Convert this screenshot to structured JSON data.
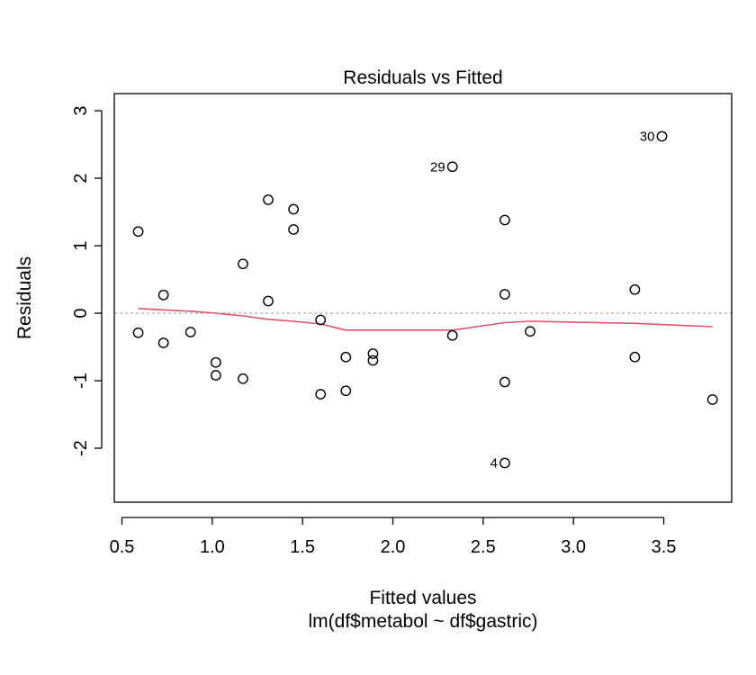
{
  "chart_data": {
    "type": "scatter",
    "title": "Residuals vs Fitted",
    "xlabel": "Fitted values",
    "sublabel": "lm(df$metabol ~ df$gastric)",
    "ylabel": "Residuals",
    "xlim": [
      0.5,
      3.85
    ],
    "ylim": [
      -2.8,
      3.2
    ],
    "xticks": [
      0.5,
      1.0,
      1.5,
      2.0,
      2.5,
      3.0,
      3.5
    ],
    "xtick_labels": [
      "0.5",
      "1.0",
      "1.5",
      "2.0",
      "2.5",
      "3.0",
      "3.5"
    ],
    "yticks": [
      -2,
      -1,
      0,
      1,
      2,
      3
    ],
    "ytick_labels": [
      "-2",
      "-1",
      "0",
      "1",
      "2",
      "3"
    ],
    "reference_line": 0,
    "points": [
      {
        "x": 0.59,
        "y": 1.21
      },
      {
        "x": 0.59,
        "y": -0.29
      },
      {
        "x": 0.73,
        "y": 0.27
      },
      {
        "x": 0.73,
        "y": -0.44
      },
      {
        "x": 0.88,
        "y": -0.28
      },
      {
        "x": 1.02,
        "y": -0.73
      },
      {
        "x": 1.02,
        "y": -0.92
      },
      {
        "x": 1.17,
        "y": 0.73
      },
      {
        "x": 1.17,
        "y": -0.97
      },
      {
        "x": 1.31,
        "y": 1.68
      },
      {
        "x": 1.31,
        "y": 0.18
      },
      {
        "x": 1.45,
        "y": 1.54
      },
      {
        "x": 1.45,
        "y": 1.24
      },
      {
        "x": 1.6,
        "y": -0.1
      },
      {
        "x": 1.6,
        "y": -1.2
      },
      {
        "x": 1.74,
        "y": -0.65
      },
      {
        "x": 1.74,
        "y": -1.15
      },
      {
        "x": 1.89,
        "y": -0.6
      },
      {
        "x": 1.89,
        "y": -0.7
      },
      {
        "x": 2.33,
        "y": 2.17,
        "label": "29"
      },
      {
        "x": 2.33,
        "y": -0.33
      },
      {
        "x": 2.62,
        "y": 1.38
      },
      {
        "x": 2.62,
        "y": 0.28
      },
      {
        "x": 2.62,
        "y": -1.02
      },
      {
        "x": 2.62,
        "y": -2.22,
        "label": "4"
      },
      {
        "x": 2.76,
        "y": -0.27
      },
      {
        "x": 3.34,
        "y": 0.35
      },
      {
        "x": 3.34,
        "y": -0.65
      },
      {
        "x": 3.49,
        "y": 2.62,
        "label": "30"
      },
      {
        "x": 3.77,
        "y": -1.28
      }
    ],
    "smoother": [
      {
        "x": 0.59,
        "y": 0.07
      },
      {
        "x": 0.73,
        "y": 0.05
      },
      {
        "x": 0.88,
        "y": 0.03
      },
      {
        "x": 1.02,
        "y": 0.0
      },
      {
        "x": 1.17,
        "y": -0.04
      },
      {
        "x": 1.31,
        "y": -0.09
      },
      {
        "x": 1.45,
        "y": -0.12
      },
      {
        "x": 1.6,
        "y": -0.16
      },
      {
        "x": 1.74,
        "y": -0.25
      },
      {
        "x": 1.89,
        "y": -0.25
      },
      {
        "x": 2.33,
        "y": -0.25
      },
      {
        "x": 2.62,
        "y": -0.14
      },
      {
        "x": 2.76,
        "y": -0.12
      },
      {
        "x": 3.34,
        "y": -0.15
      },
      {
        "x": 3.77,
        "y": -0.2
      }
    ],
    "colors": {
      "points": "#000000",
      "smoother": "#DF536B",
      "reference_line": "#999999",
      "axes": "#000000"
    }
  }
}
